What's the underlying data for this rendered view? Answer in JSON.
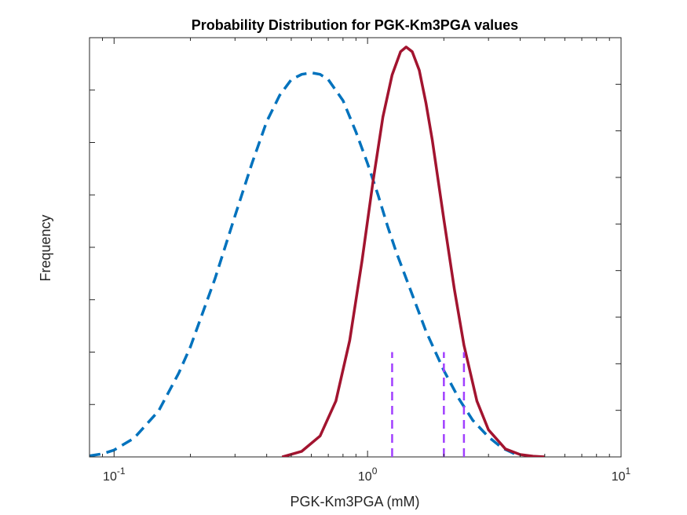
{
  "chart_data": {
    "type": "line",
    "title": "Probability Distribution for PGK-Km3PGA values",
    "xlabel": "PGK-Km3PGA (mM)",
    "ylabel": "Frequency",
    "ylabel_right": "",
    "x_scale": "log",
    "xlim": [
      0.08,
      10
    ],
    "ylim_left": [
      0,
      0.8
    ],
    "ylim_right": [
      0,
      0.9
    ],
    "x_ticks": [
      {
        "value": 0.1,
        "base": "10",
        "exp": "-1"
      },
      {
        "value": 1,
        "base": "10",
        "exp": "0"
      },
      {
        "value": 10,
        "base": "10",
        "exp": "1"
      }
    ],
    "y_ticks_left": [
      "0",
      "0.1",
      "0.2",
      "0.3",
      "0.4",
      "0.5",
      "0.6",
      "0.7",
      "0.8"
    ],
    "y_ticks_right": [
      "0",
      "0.1",
      "0.2",
      "0.3",
      "0.4",
      "0.5",
      "0.6",
      "0.7",
      "0.8",
      "0.9"
    ],
    "grid": false,
    "series": [
      {
        "axis": "left",
        "style": "dashed",
        "color": "#0072BD",
        "x": [
          0.08,
          0.09,
          0.1,
          0.12,
          0.15,
          0.18,
          0.2,
          0.25,
          0.3,
          0.35,
          0.4,
          0.45,
          0.5,
          0.55,
          0.6,
          0.65,
          0.7,
          0.8,
          0.9,
          1.0,
          1.1,
          1.2,
          1.3,
          1.5,
          1.7,
          2.0,
          2.3,
          2.6,
          3.0,
          3.4,
          3.8
        ],
        "y": [
          0.002,
          0.006,
          0.013,
          0.036,
          0.088,
          0.16,
          0.21,
          0.34,
          0.46,
          0.56,
          0.64,
          0.69,
          0.72,
          0.73,
          0.733,
          0.73,
          0.72,
          0.68,
          0.62,
          0.56,
          0.5,
          0.44,
          0.39,
          0.31,
          0.24,
          0.165,
          0.11,
          0.07,
          0.038,
          0.017,
          0.006
        ]
      },
      {
        "axis": "right",
        "style": "solid",
        "color": "#A2142F",
        "x": [
          0.46,
          0.55,
          0.65,
          0.75,
          0.85,
          0.95,
          1.05,
          1.15,
          1.25,
          1.35,
          1.42,
          1.5,
          1.6,
          1.7,
          1.8,
          2.0,
          2.2,
          2.4,
          2.7,
          3.0,
          3.5,
          4.0,
          4.5,
          5.0
        ],
        "y": [
          0.0,
          0.012,
          0.045,
          0.12,
          0.25,
          0.42,
          0.59,
          0.73,
          0.82,
          0.87,
          0.88,
          0.87,
          0.83,
          0.76,
          0.68,
          0.51,
          0.36,
          0.24,
          0.12,
          0.058,
          0.017,
          0.005,
          0.0015,
          0.0
        ]
      }
    ],
    "reference_lines": {
      "axis": "left",
      "style": "dashed",
      "color": "#A140FF",
      "x": [
        1.25,
        2.0,
        2.4
      ],
      "y_top": 0.2
    }
  }
}
